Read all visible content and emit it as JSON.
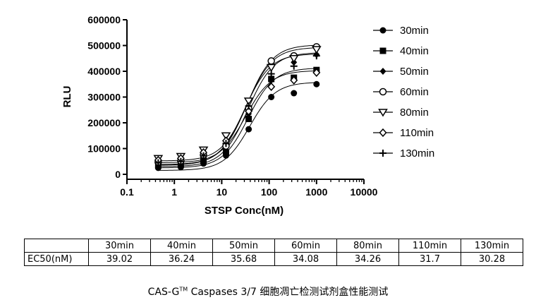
{
  "chart_data": {
    "type": "scatter",
    "title": "",
    "xlabel": "STSP Conc(nM)",
    "ylabel": "RLU",
    "xscale": "log",
    "xlim": [
      0.1,
      10000
    ],
    "ylim": [
      0,
      600000
    ],
    "xticks": [
      "0.1",
      "1",
      "10",
      "100",
      "1000",
      "10000"
    ],
    "yticks": [
      "0",
      "100000",
      "200000",
      "300000",
      "400000",
      "500000",
      "600000"
    ],
    "legend_position": "right",
    "x": [
      0.457,
      1.37,
      4.12,
      12.3,
      37,
      111,
      333,
      1000
    ],
    "series": [
      {
        "name": "30min",
        "marker": "filled-circle",
        "values": [
          25000,
          28000,
          42000,
          73000,
          175000,
          300000,
          315000,
          350000
        ],
        "fit_ec50": 39.02
      },
      {
        "name": "40min",
        "marker": "filled-square",
        "values": [
          35000,
          38000,
          55000,
          85000,
          215000,
          370000,
          375000,
          405000
        ],
        "fit_ec50": 36.24
      },
      {
        "name": "50min",
        "marker": "filled-diamond",
        "values": [
          40000,
          43000,
          60000,
          95000,
          235000,
          365000,
          435000,
          465000
        ],
        "fit_ec50": 35.68
      },
      {
        "name": "60min",
        "marker": "open-circle",
        "values": [
          48000,
          52000,
          75000,
          110000,
          255000,
          440000,
          460000,
          495000
        ],
        "fit_ec50": 34.08
      },
      {
        "name": "80min",
        "marker": "open-triangle-down",
        "values": [
          62000,
          70000,
          95000,
          150000,
          285000,
          415000,
          450000,
          485000
        ],
        "fit_ec50": 34.26
      },
      {
        "name": "110min",
        "marker": "open-diamond",
        "values": [
          55000,
          62000,
          85000,
          130000,
          245000,
          340000,
          365000,
          395000
        ],
        "fit_ec50": 31.7
      },
      {
        "name": "130min",
        "marker": "plus",
        "values": [
          45000,
          50000,
          72000,
          120000,
          265000,
          390000,
          420000,
          460000
        ],
        "fit_ec50": 30.28
      }
    ],
    "grid": false
  },
  "table": {
    "headers": [
      "",
      "30min",
      "40min",
      "50min",
      "60min",
      "80min",
      "110min",
      "130min"
    ],
    "row_label": "EC50(nM)",
    "row_values": [
      "39.02",
      "36.24",
      "35.68",
      "34.08",
      "34.26",
      "31.7",
      "30.28"
    ]
  },
  "caption": {
    "brand": "CAS-G",
    "tm": "TM",
    "rest": " Caspases 3/7  细胞凋亡检测试剂盒性能测试"
  }
}
